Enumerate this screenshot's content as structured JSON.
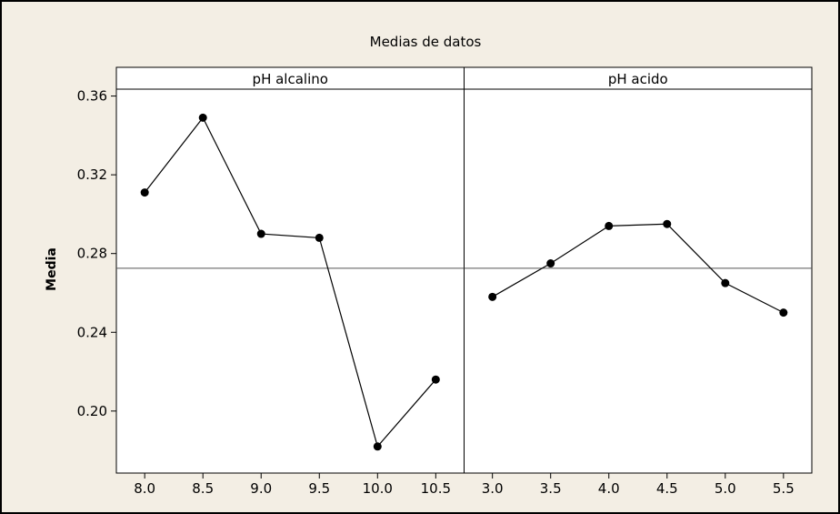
{
  "chart_data": {
    "type": "line",
    "title": "Medias de datos",
    "ylabel": "Media",
    "xlabel": "",
    "ylim": [
      0.1685,
      0.3635
    ],
    "yticks": [
      0.2,
      0.24,
      0.28,
      0.32,
      0.36
    ],
    "ytick_labels": [
      "0.20",
      "0.24",
      "0.28",
      "0.32",
      "0.36"
    ],
    "reference_line": 0.2725,
    "grid": false,
    "colors": {
      "line": "#000000",
      "marker": "#000000",
      "reference": "#555555",
      "background": "#f3eee4"
    },
    "panels": [
      {
        "name": "pH alcalino",
        "x": [
          8.0,
          8.5,
          9.0,
          9.5,
          10.0,
          10.5
        ],
        "x_labels": [
          "8.0",
          "8.5",
          "9.0",
          "9.5",
          "10.0",
          "10.5"
        ],
        "values": [
          0.311,
          0.349,
          0.29,
          0.288,
          0.182,
          0.216
        ]
      },
      {
        "name": "pH acido",
        "x": [
          3.0,
          3.5,
          4.0,
          4.5,
          5.0,
          5.5
        ],
        "x_labels": [
          "3.0",
          "3.5",
          "4.0",
          "4.5",
          "5.0",
          "5.5"
        ],
        "values": [
          0.258,
          0.275,
          0.294,
          0.295,
          0.265,
          0.25
        ]
      }
    ]
  }
}
